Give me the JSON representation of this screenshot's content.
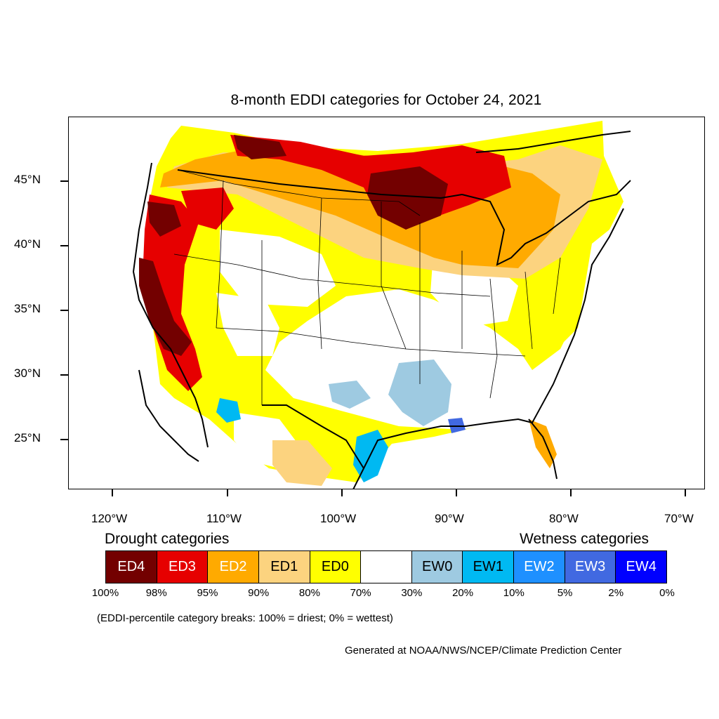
{
  "title": "8-month EDDI categories for October 24, 2021",
  "latitude_labels": [
    "45°N",
    "40°N",
    "35°N",
    "30°N",
    "25°N"
  ],
  "longitude_labels": [
    "120°W",
    "110°W",
    "100°W",
    "90°W",
    "80°W",
    "70°W"
  ],
  "legend": {
    "drought_title": "Drought categories",
    "wetness_title": "Wetness categories",
    "categories": [
      {
        "label": "ED4",
        "color": "#730000",
        "text_color": "#ffffff"
      },
      {
        "label": "ED3",
        "color": "#e60000",
        "text_color": "#ffffff"
      },
      {
        "label": "ED2",
        "color": "#ffaa00",
        "text_color": "#ffffff"
      },
      {
        "label": "ED1",
        "color": "#fcd37f",
        "text_color": "#000000"
      },
      {
        "label": "ED0",
        "color": "#ffff00",
        "text_color": "#000000"
      },
      {
        "label": "",
        "color": "#ffffff",
        "text_color": "#000000"
      },
      {
        "label": "EW0",
        "color": "#9ecae1",
        "text_color": "#000000"
      },
      {
        "label": "EW1",
        "color": "#00b9f2",
        "text_color": "#000000"
      },
      {
        "label": "EW2",
        "color": "#1e90ff",
        "text_color": "#ffffff"
      },
      {
        "label": "EW3",
        "color": "#4169e1",
        "text_color": "#ffffff"
      },
      {
        "label": "EW4",
        "color": "#0000ff",
        "text_color": "#ffffff"
      }
    ],
    "percentiles": [
      "100%",
      "98%",
      "95%",
      "90%",
      "80%",
      "70%",
      "30%",
      "20%",
      "10%",
      "5%",
      "2%",
      "0%"
    ],
    "note": "(EDDI-percentile category breaks: 100% = driest; 0% = wettest)"
  },
  "credit": "Generated at NOAA/NWS/NCEP/Climate Prediction Center"
}
